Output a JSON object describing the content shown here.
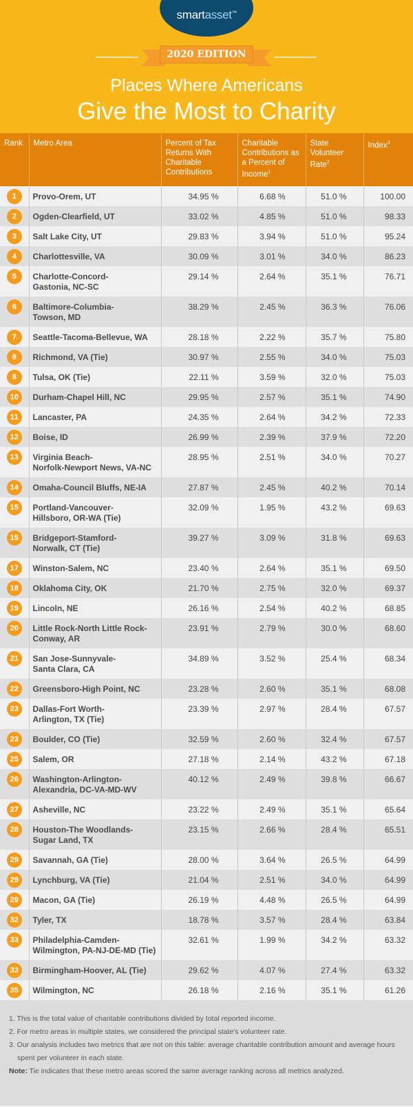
{
  "brand": {
    "logo_smart": "smart",
    "logo_asset": "asset",
    "logo_tm": "™"
  },
  "edition": "2020 EDITION",
  "title_line1": "Places Where Americans",
  "title_line2": "Give the Most to Charity",
  "colors": {
    "background": "#F8B81C",
    "header": "#E2820A",
    "badge": "#F39C1E",
    "logo": "#0D4A6E"
  },
  "columns": {
    "rank": "Rank",
    "metro": "Metro Area",
    "pct_returns": "Percent of Tax Returns With Charitable Contributions",
    "contrib": "Charitable Contributions as a Percent of Income",
    "contrib_sup": "1",
    "volunteer": "State Volunteer Rate",
    "volunteer_sup": "2",
    "index": "Index",
    "index_sup": "3"
  },
  "rows": [
    [
      "1",
      "Provo-Orem, UT",
      "34.95 %",
      "6.68 %",
      "51.0 %",
      "100.00"
    ],
    [
      "2",
      "Ogden-Clearfield, UT",
      "33.02 %",
      "4.85 %",
      "51.0 %",
      "98.33"
    ],
    [
      "3",
      "Salt Lake City, UT",
      "29.83 %",
      "3.94 %",
      "51.0 %",
      "95.24"
    ],
    [
      "4",
      "Charlottesville, VA",
      "30.09 %",
      "3.01 %",
      "34.0 %",
      "86.23"
    ],
    [
      "5",
      "Charlotte-Concord-Gastonia, NC-SC",
      "29.14 %",
      "2.64 %",
      "35.1 %",
      "76.71"
    ],
    [
      "6",
      "Baltimore-Columbia-Towson, MD",
      "38.29 %",
      "2.45 %",
      "36.3 %",
      "76.06"
    ],
    [
      "7",
      "Seattle-Tacoma-Bellevue, WA",
      "28.18 %",
      "2.22 %",
      "35.7 %",
      "75.80"
    ],
    [
      "8",
      "Richmond, VA (Tie)",
      "30.97 %",
      "2.55 %",
      "34.0 %",
      "75.03"
    ],
    [
      "8",
      "Tulsa, OK (Tie)",
      "22.11 %",
      "3.59 %",
      "32.0 %",
      "75.03"
    ],
    [
      "10",
      "Durham-Chapel Hill, NC",
      "29.95 %",
      "2.57 %",
      "35.1 %",
      "74.90"
    ],
    [
      "11",
      "Lancaster, PA",
      "24.35 %",
      "2.64 %",
      "34.2 %",
      "72.33"
    ],
    [
      "12",
      "Boise, ID",
      "26.99 %",
      "2.39 %",
      "37.9 %",
      "72.20"
    ],
    [
      "13",
      "Virginia Beach-Norfolk-Newport News, VA-NC",
      "28.95 %",
      "2.51 %",
      "34.0 %",
      "70.27"
    ],
    [
      "14",
      "Omaha-Council Bluffs, NE-IA",
      "27.87 %",
      "2.45 %",
      "40.2 %",
      "70.14"
    ],
    [
      "15",
      "Portland-Vancouver-Hillsboro, OR-WA (Tie)",
      "32.09 %",
      "1.95 %",
      "43.2 %",
      "69.63"
    ],
    [
      "15",
      "Bridgeport-Stamford-Norwalk, CT (Tie)",
      "39.27 %",
      "3.09 %",
      "31.8 %",
      "69.63"
    ],
    [
      "17",
      "Winston-Salem, NC",
      "23.40 %",
      "2.64 %",
      "35.1 %",
      "69.50"
    ],
    [
      "18",
      "Oklahoma City, OK",
      "21.70 %",
      "2.75 %",
      "32.0 %",
      "69.37"
    ],
    [
      "19",
      "Lincoln, NE",
      "26.16 %",
      "2.54 %",
      "40.2 %",
      "68.85"
    ],
    [
      "20",
      "Little Rock-North Little Rock-Conway, AR",
      "23.91 %",
      "2.79 %",
      "30.0 %",
      "68.60"
    ],
    [
      "21",
      "San Jose-Sunnyvale-Santa Clara, CA",
      "34.89 %",
      "3.52 %",
      "25.4 %",
      "68.34"
    ],
    [
      "22",
      "Greensboro-High Point, NC",
      "23.28 %",
      "2.60 %",
      "35.1 %",
      "68.08"
    ],
    [
      "23",
      "Dallas-Fort Worth-Arlington, TX (Tie)",
      "23.39 %",
      "2.97 %",
      "28.4 %",
      "67.57"
    ],
    [
      "23",
      "Boulder, CO (Tie)",
      "32.59 %",
      "2.60 %",
      "32.4 %",
      "67.57"
    ],
    [
      "25",
      "Salem, OR",
      "27.18 %",
      "2.14 %",
      "43.2 %",
      "67.18"
    ],
    [
      "26",
      "Washington-Arlington-Alexandria, DC-VA-MD-WV",
      "40.12 %",
      "2.49 %",
      "39.8 %",
      "66.67"
    ],
    [
      "27",
      "Asheville, NC",
      "23.22 %",
      "2.49 %",
      "35.1 %",
      "65.64"
    ],
    [
      "28",
      "Houston-The Woodlands-Sugar Land, TX",
      "23.15 %",
      "2.66 %",
      "28.4 %",
      "65.51"
    ],
    [
      "29",
      "Savannah, GA (Tie)",
      "28.00 %",
      "3.64 %",
      "26.5 %",
      "64.99"
    ],
    [
      "29",
      "Lynchburg, VA (Tie)",
      "21.04 %",
      "2.51 %",
      "34.0 %",
      "64.99"
    ],
    [
      "29",
      "Macon, GA (Tie)",
      "26.19 %",
      "4.48 %",
      "26.5 %",
      "64.99"
    ],
    [
      "32",
      "Tyler, TX",
      "18.78 %",
      "3.57 %",
      "28.4 %",
      "63.84"
    ],
    [
      "33",
      "Philadelphia-Camden-Wilmington, PA-NJ-DE-MD (Tie)",
      "32.61 %",
      "1.99 %",
      "34.2 %",
      "63.32"
    ],
    [
      "33",
      "Birmingham-Hoover, AL (Tie)",
      "29.62 %",
      "4.07 %",
      "27.4 %",
      "63.32"
    ],
    [
      "35",
      "Wilmington, NC",
      "26.18 %",
      "2.16 %",
      "35.1 %",
      "61.26"
    ]
  ],
  "footnotes": [
    "1. This is the total value of charitable contributions divided by total reported income.",
    "2. For metro areas in multiple states, we considered the principal state's volunteer rate.",
    "3. Our analysis includes two metrics that are not on this table: average charitable contribution amount and average hours spent per volunteer in each state."
  ],
  "note_label": "Note:",
  "note_text": " Tie indicates that these metro areas scored the same average ranking across all metrics analyzed."
}
